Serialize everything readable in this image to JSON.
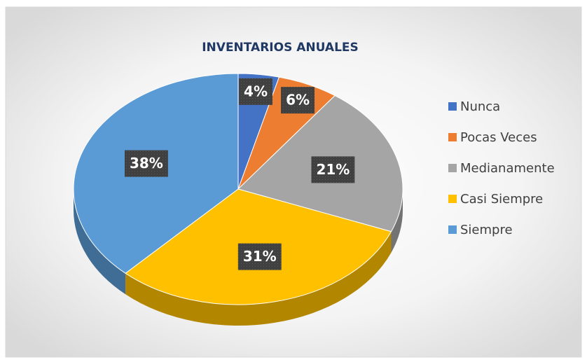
{
  "chart_data": {
    "type": "pie",
    "title": "INVENTARIOS ANUALES",
    "categories": [
      "Nunca",
      "Pocas Veces",
      "Medianamente",
      "Casi Siempre",
      "Siempre"
    ],
    "values": [
      4,
      6,
      21,
      31,
      38
    ],
    "value_labels": [
      "4%",
      "6%",
      "21%",
      "31%",
      "38%"
    ],
    "colors": [
      "#4472c4",
      "#ed7d31",
      "#a5a5a5",
      "#ffc000",
      "#5b9bd5"
    ],
    "legend": "right"
  }
}
